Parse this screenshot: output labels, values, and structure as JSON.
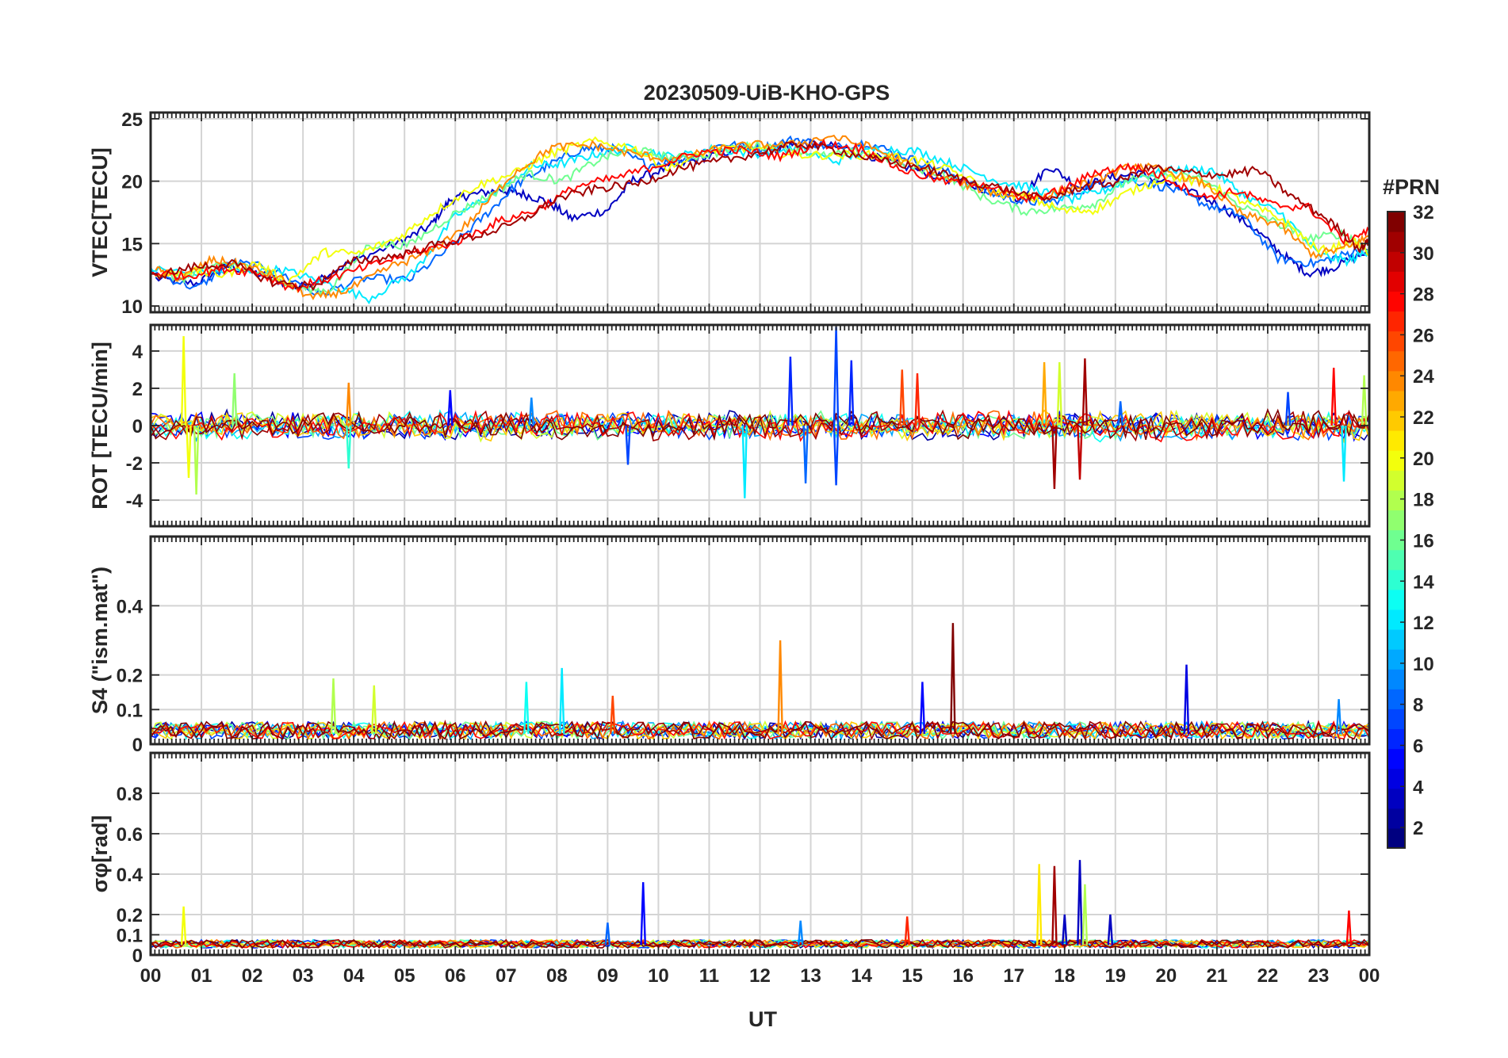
{
  "figure": {
    "title": "20230509-UiB-KHO-GPS"
  },
  "chart_data": [
    {
      "id": "vtec",
      "type": "line",
      "ylabel": "VTEC[TECU]",
      "ylim": [
        9.5,
        25.5
      ],
      "yticks": [
        10,
        15,
        20,
        25
      ],
      "ytick_labels": [
        "10",
        "15",
        "20",
        "25"
      ],
      "series": [
        {
          "prn": 3,
          "x": [
            0.1,
            0.9,
            1.5,
            2.3,
            2.9,
            4.0,
            4.9,
            5.5,
            5.9,
            6.3,
            6.9,
            7.3,
            7.8,
            8.3,
            9.0,
            9.5,
            10.2,
            10.9,
            11.6,
            12.1,
            12.6,
            13.1,
            13.8,
            14.6,
            15.4,
            16.3,
            17.1,
            17.7,
            18.3,
            18.9,
            19.5,
            20.3,
            21.0,
            21.7,
            22.3,
            22.8,
            23.3,
            24.0
          ],
          "y": [
            12.2,
            11.8,
            13.2,
            12.4,
            11.4,
            13.6,
            15.1,
            16.4,
            18.5,
            18.9,
            19.3,
            19.0,
            18.4,
            17.0,
            17.7,
            20.1,
            21.1,
            21.9,
            22.6,
            22.2,
            22.9,
            23.0,
            22.5,
            21.5,
            20.5,
            19.5,
            18.6,
            21.2,
            19.5,
            20.3,
            20.6,
            19.4,
            18.2,
            16.3,
            14.1,
            12.6,
            13.1,
            14.4
          ]
        },
        {
          "prn": 8,
          "x": [
            0.0,
            0.9,
            1.6,
            2.4,
            3.3,
            4.2,
            5.1,
            5.9,
            6.6,
            7.2,
            7.8,
            8.5,
            9.1,
            9.8,
            10.5,
            11.3,
            12.0,
            12.7,
            13.4,
            14.1,
            14.9,
            15.7,
            16.5,
            17.2,
            17.8,
            18.6,
            19.3,
            20.1,
            20.8,
            21.5,
            22.2,
            22.9,
            23.5,
            24.0
          ],
          "y": [
            12.8,
            11.4,
            13.5,
            13.0,
            10.9,
            12.2,
            12.1,
            14.7,
            17.3,
            19.7,
            21.2,
            22.6,
            22.6,
            21.3,
            21.8,
            23.0,
            22.6,
            23.4,
            22.7,
            23.1,
            21.9,
            20.7,
            19.1,
            18.3,
            18.4,
            19.7,
            20.1,
            19.4,
            18.1,
            17.2,
            13.8,
            13.4,
            14.1,
            14.8
          ]
        },
        {
          "prn": 12,
          "x": [
            0.0,
            0.8,
            1.7,
            2.6,
            3.4,
            4.3,
            5.2,
            6.0,
            6.8,
            7.5,
            8.1,
            8.8,
            9.5,
            10.3,
            11.1,
            11.9,
            12.7,
            13.5,
            14.3,
            15.1,
            15.9,
            16.7,
            17.4,
            18.1,
            18.8,
            19.5,
            20.2,
            20.9,
            21.6,
            22.3,
            23.0,
            23.6,
            24.0
          ],
          "y": [
            13.0,
            12.6,
            12.8,
            12.9,
            11.9,
            10.6,
            12.8,
            17.2,
            19.1,
            21.2,
            21.4,
            22.2,
            22.7,
            21.9,
            22.6,
            22.2,
            22.6,
            21.6,
            22.6,
            22.4,
            21.2,
            20.0,
            19.4,
            18.5,
            19.3,
            20.4,
            20.9,
            20.9,
            18.7,
            17.3,
            14.1,
            13.6,
            14.5
          ]
        },
        {
          "prn": 16,
          "x": [
            0.1,
            0.7,
            1.3,
            2.0,
            2.8,
            3.5,
            4.3,
            5.1,
            5.9,
            6.7,
            7.4,
            8.1,
            8.9,
            9.6,
            10.3,
            11.1,
            11.8,
            12.5,
            13.2,
            14.0,
            14.8,
            15.6,
            16.4,
            17.2,
            17.9,
            18.6,
            19.2,
            19.9,
            20.7,
            21.4,
            22.1,
            22.8,
            23.5,
            24.0
          ],
          "y": [
            12.6,
            12.2,
            13.4,
            13.1,
            11.5,
            11.2,
            14.9,
            14.9,
            17.2,
            18.9,
            20.6,
            20.0,
            21.9,
            22.5,
            21.8,
            22.2,
            22.9,
            22.7,
            22.0,
            22.4,
            21.3,
            20.6,
            18.7,
            17.6,
            17.8,
            18.2,
            20.0,
            20.5,
            20.2,
            18.2,
            16.8,
            15.4,
            15.8,
            14.6
          ]
        },
        {
          "prn": 20,
          "x": [
            0.1,
            0.8,
            1.4,
            2.1,
            2.7,
            3.4,
            4.1,
            4.9,
            5.6,
            6.4,
            7.2,
            7.9,
            8.7,
            9.5,
            10.2,
            11.0,
            11.8,
            12.6,
            13.4,
            14.2,
            15.0,
            15.8,
            16.6,
            17.3,
            18.0,
            18.6,
            19.3,
            20.1,
            20.9,
            21.6,
            22.3,
            23.0,
            23.7,
            24.0
          ],
          "y": [
            12.4,
            12.8,
            12.5,
            13.4,
            11.9,
            14.3,
            14.2,
            15.5,
            17.6,
            19.6,
            20.7,
            22.2,
            23.2,
            22.7,
            21.0,
            22.5,
            22.7,
            22.1,
            22.1,
            22.1,
            21.8,
            20.8,
            19.1,
            18.7,
            17.6,
            17.7,
            19.2,
            20.4,
            19.6,
            18.2,
            16.9,
            14.4,
            15.1,
            14.3
          ]
        },
        {
          "prn": 24,
          "x": [
            0.1,
            0.6,
            1.2,
            1.8,
            2.5,
            3.2,
            3.9,
            4.7,
            5.5,
            6.3,
            7.1,
            7.9,
            8.7,
            9.5,
            10.3,
            11.1,
            11.8,
            12.6,
            13.4,
            14.2,
            15.0,
            15.8,
            16.6,
            17.4,
            18.0,
            18.7,
            19.4,
            20.1,
            20.8,
            21.5,
            22.2,
            22.9,
            23.6,
            24.0
          ],
          "y": [
            12.9,
            12.2,
            13.7,
            13.3,
            12.3,
            10.6,
            11.3,
            13.1,
            14.3,
            16.8,
            20.5,
            22.7,
            22.9,
            22.2,
            21.7,
            22.5,
            22.9,
            22.9,
            23.6,
            22.7,
            21.2,
            20.0,
            19.1,
            18.7,
            19.2,
            20.3,
            21.3,
            20.7,
            19.7,
            17.3,
            16.6,
            14.1,
            14.7,
            15.6
          ]
        },
        {
          "prn": 28,
          "x": [
            0.0,
            0.7,
            1.4,
            2.1,
            2.8,
            3.6,
            4.4,
            5.2,
            6.0,
            6.8,
            7.6,
            8.4,
            9.2,
            10.0,
            10.8,
            11.6,
            12.4,
            13.2,
            14.0,
            14.8,
            15.6,
            16.4,
            17.2,
            17.9,
            18.6,
            19.3,
            20.0,
            20.7,
            21.4,
            22.1,
            22.8,
            23.5,
            24.0
          ],
          "y": [
            12.7,
            12.4,
            13.0,
            12.7,
            11.4,
            12.3,
            13.3,
            14.3,
            15.1,
            16.7,
            17.7,
            19.6,
            20.3,
            21.3,
            22.3,
            22.5,
            22.0,
            23.0,
            22.6,
            20.9,
            20.0,
            19.8,
            18.5,
            19.2,
            20.7,
            21.2,
            20.3,
            18.7,
            19.2,
            18.1,
            17.9,
            15.3,
            16.0
          ]
        },
        {
          "prn": 31,
          "x": [
            0.0,
            0.8,
            1.6,
            2.4,
            3.2,
            4.0,
            4.8,
            5.6,
            6.4,
            7.2,
            8.0,
            8.8,
            9.6,
            10.4,
            11.2,
            12.0,
            12.8,
            13.6,
            14.4,
            15.2,
            16.0,
            16.8,
            17.6,
            18.3,
            19.0,
            19.7,
            20.4,
            21.1,
            21.8,
            22.5,
            23.2,
            23.8,
            24.0
          ],
          "y": [
            12.3,
            13.1,
            13.4,
            11.9,
            11.6,
            13.6,
            14.0,
            14.9,
            15.6,
            16.6,
            18.6,
            19.4,
            19.8,
            21.0,
            21.6,
            22.3,
            23.0,
            22.4,
            21.6,
            21.1,
            20.1,
            19.4,
            18.5,
            19.5,
            19.9,
            21.1,
            20.7,
            20.5,
            20.9,
            18.7,
            16.9,
            14.6,
            15.2
          ]
        }
      ]
    },
    {
      "id": "rot",
      "type": "line",
      "ylabel": "ROT [TECU/min]",
      "ylim": [
        -5.4,
        5.4
      ],
      "yticks": [
        -4,
        -2,
        0,
        2,
        4
      ],
      "ytick_labels": [
        "-4",
        "-2",
        "0",
        "2",
        "4"
      ],
      "spikes": [
        {
          "x": 0.65,
          "y": 4.8,
          "prn": 20
        },
        {
          "x": 0.75,
          "y": -2.8,
          "prn": 20
        },
        {
          "x": 0.9,
          "y": -3.7,
          "prn": 18
        },
        {
          "x": 1.65,
          "y": 2.8,
          "prn": 17
        },
        {
          "x": 3.9,
          "y": 2.3,
          "prn": 24
        },
        {
          "x": 3.9,
          "y": -2.3,
          "prn": 14
        },
        {
          "x": 5.9,
          "y": 1.9,
          "prn": 5
        },
        {
          "x": 7.5,
          "y": 1.5,
          "prn": 9
        },
        {
          "x": 9.4,
          "y": -2.1,
          "prn": 7
        },
        {
          "x": 11.7,
          "y": -3.9,
          "prn": 12
        },
        {
          "x": 12.6,
          "y": 3.7,
          "prn": 6
        },
        {
          "x": 12.9,
          "y": -3.1,
          "prn": 8
        },
        {
          "x": 13.5,
          "y": 5.3,
          "prn": 7
        },
        {
          "x": 13.5,
          "y": -3.2,
          "prn": 7
        },
        {
          "x": 13.8,
          "y": 3.5,
          "prn": 6
        },
        {
          "x": 14.8,
          "y": 3.0,
          "prn": 26
        },
        {
          "x": 15.1,
          "y": 2.8,
          "prn": 27
        },
        {
          "x": 17.6,
          "y": 3.4,
          "prn": 23
        },
        {
          "x": 17.8,
          "y": -3.4,
          "prn": 31
        },
        {
          "x": 17.9,
          "y": 3.4,
          "prn": 19
        },
        {
          "x": 18.4,
          "y": 3.6,
          "prn": 31
        },
        {
          "x": 18.3,
          "y": -2.9,
          "prn": 30
        },
        {
          "x": 19.1,
          "y": 1.3,
          "prn": 8
        },
        {
          "x": 22.4,
          "y": 1.8,
          "prn": 7
        },
        {
          "x": 23.3,
          "y": 3.1,
          "prn": 28
        },
        {
          "x": 23.5,
          "y": -3.0,
          "prn": 12
        },
        {
          "x": 23.9,
          "y": 2.7,
          "prn": 18
        }
      ]
    },
    {
      "id": "s4",
      "type": "line",
      "ylabel": "S4 (\"ism.mat\")",
      "ylim": [
        0,
        0.6
      ],
      "yticks": [
        0,
        0.1,
        0.2,
        0.4
      ],
      "ytick_labels": [
        "0",
        "0.1",
        "0.2",
        "0.4"
      ],
      "spikes": [
        {
          "x": 3.6,
          "y": 0.19,
          "prn": 18
        },
        {
          "x": 4.4,
          "y": 0.17,
          "prn": 19
        },
        {
          "x": 7.4,
          "y": 0.18,
          "prn": 13
        },
        {
          "x": 8.1,
          "y": 0.22,
          "prn": 12
        },
        {
          "x": 9.1,
          "y": 0.14,
          "prn": 26
        },
        {
          "x": 12.4,
          "y": 0.3,
          "prn": 24
        },
        {
          "x": 15.2,
          "y": 0.18,
          "prn": 5
        },
        {
          "x": 15.8,
          "y": 0.35,
          "prn": 32
        },
        {
          "x": 20.4,
          "y": 0.23,
          "prn": 4
        },
        {
          "x": 23.4,
          "y": 0.13,
          "prn": 9
        }
      ]
    },
    {
      "id": "sigphi",
      "type": "line",
      "ylabel": "σφ[rad]",
      "ylim": [
        0,
        1.0
      ],
      "yticks": [
        0,
        0.1,
        0.2,
        0.4,
        0.6,
        0.8
      ],
      "ytick_labels": [
        "0",
        "0.1",
        "0.2",
        "0.4",
        "0.6",
        "0.8"
      ],
      "spikes": [
        {
          "x": 0.65,
          "y": 0.24,
          "prn": 20
        },
        {
          "x": 9.0,
          "y": 0.16,
          "prn": 8
        },
        {
          "x": 9.7,
          "y": 0.36,
          "prn": 5
        },
        {
          "x": 12.8,
          "y": 0.17,
          "prn": 9
        },
        {
          "x": 14.9,
          "y": 0.19,
          "prn": 27
        },
        {
          "x": 17.5,
          "y": 0.45,
          "prn": 21
        },
        {
          "x": 17.8,
          "y": 0.44,
          "prn": 31
        },
        {
          "x": 18.0,
          "y": 0.2,
          "prn": 3
        },
        {
          "x": 18.3,
          "y": 0.47,
          "prn": 3
        },
        {
          "x": 18.4,
          "y": 0.35,
          "prn": 18
        },
        {
          "x": 18.9,
          "y": 0.2,
          "prn": 3
        },
        {
          "x": 23.6,
          "y": 0.22,
          "prn": 28
        }
      ]
    }
  ],
  "x_axis": {
    "label": "UT",
    "xlim": [
      0,
      24
    ],
    "tick_labels": [
      "00",
      "01",
      "02",
      "03",
      "04",
      "05",
      "06",
      "07",
      "08",
      "09",
      "10",
      "11",
      "12",
      "13",
      "14",
      "15",
      "16",
      "17",
      "18",
      "19",
      "20",
      "21",
      "22",
      "23",
      "00"
    ]
  },
  "colorbar": {
    "title": "#PRN",
    "range": [
      1,
      32
    ],
    "ticks": [
      2,
      4,
      6,
      8,
      10,
      12,
      14,
      16,
      18,
      20,
      22,
      24,
      26,
      28,
      30,
      32
    ],
    "tick_labels": [
      "2",
      "4",
      "6",
      "8",
      "10",
      "12",
      "14",
      "16",
      "18",
      "20",
      "22",
      "24",
      "26",
      "28",
      "30",
      "32"
    ]
  }
}
